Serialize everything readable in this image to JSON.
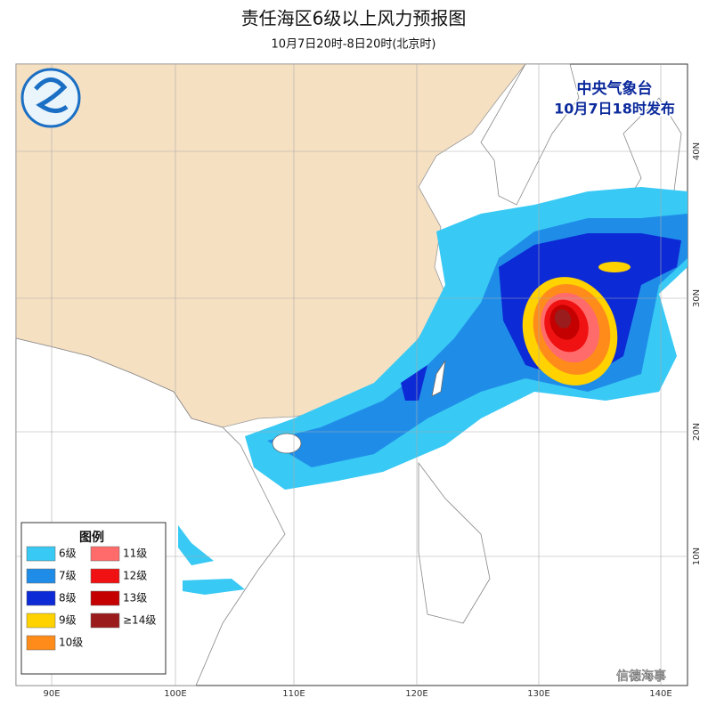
{
  "header": {
    "title": "责任海区6级以上风力预报图",
    "subtitle": "10月7日20时-8日20时(北京时)"
  },
  "issuer": {
    "name": "中央气象台",
    "time": "10月7日18时发布"
  },
  "legend": {
    "title": "图例",
    "items": [
      {
        "label": "6级",
        "color": "#38c9f4"
      },
      {
        "label": "7级",
        "color": "#1f8de8"
      },
      {
        "label": "8级",
        "color": "#0c2ad6"
      },
      {
        "label": "9级",
        "color": "#ffd200"
      },
      {
        "label": "10级",
        "color": "#ff8c1a"
      },
      {
        "label": "11级",
        "color": "#ff6b6b"
      },
      {
        "label": "12级",
        "color": "#f01212"
      },
      {
        "label": "13级",
        "color": "#c40000"
      },
      {
        "label": "≥14级",
        "color": "#9b1c1c"
      }
    ]
  },
  "longitudes": [
    "90E",
    "100E",
    "110E",
    "120E",
    "130E",
    "140E"
  ],
  "latitudes": [
    "40N",
    "30N",
    "20N",
    "10N"
  ],
  "watermark": "信德海事"
}
